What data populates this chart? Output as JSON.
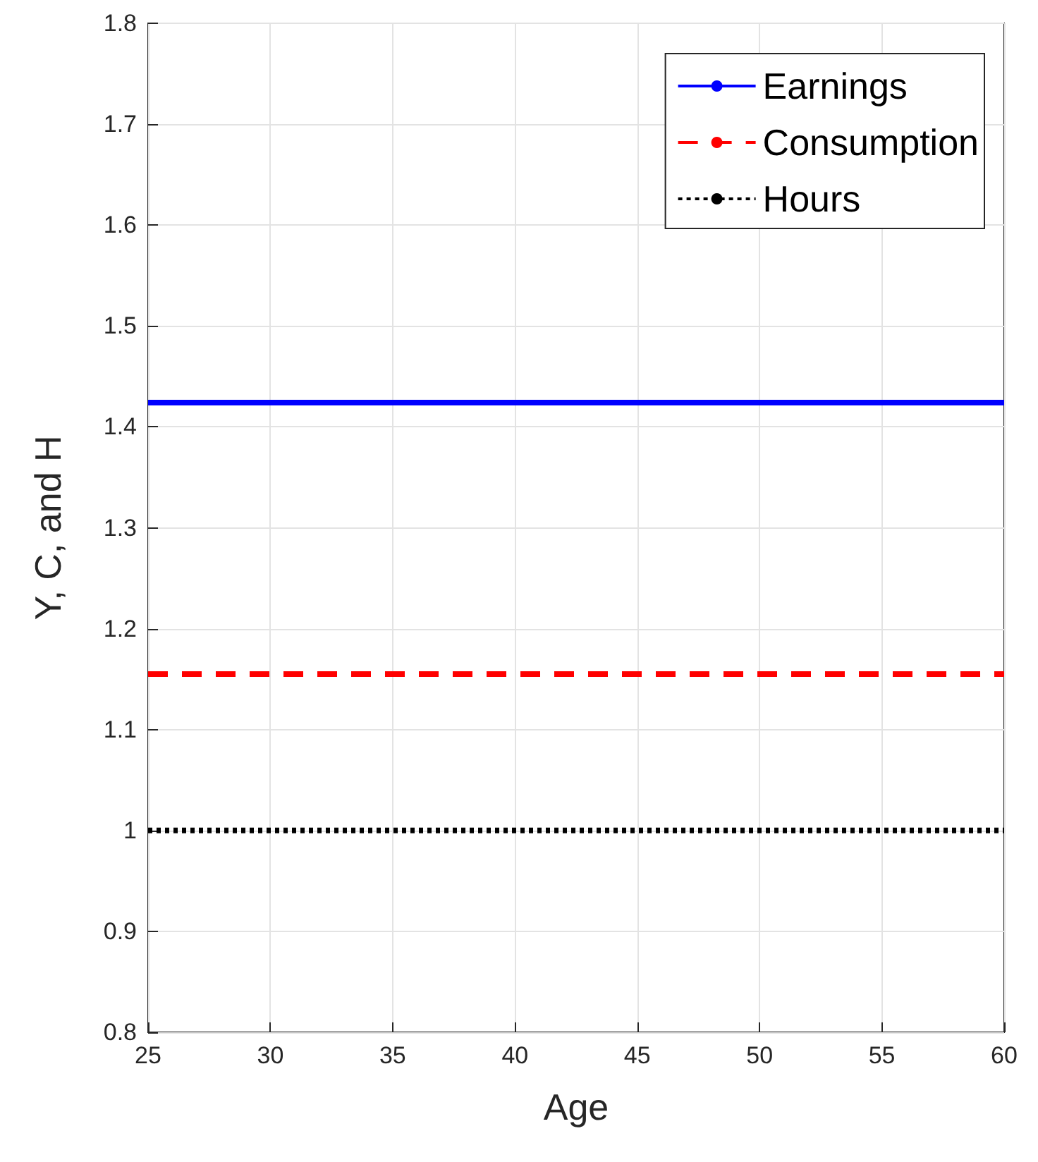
{
  "chart_data": {
    "type": "line",
    "xlabel": "Age",
    "ylabel": "Y, C, and H",
    "x": [
      25,
      60
    ],
    "xlim": [
      25,
      60
    ],
    "xticks": [
      25,
      30,
      35,
      40,
      45,
      50,
      55,
      60
    ],
    "ylim": [
      0.8,
      1.8
    ],
    "yticks": [
      0.8,
      0.9,
      1,
      1.1,
      1.2,
      1.3,
      1.4,
      1.5,
      1.6,
      1.7,
      1.8
    ],
    "grid": true,
    "legend": "top right",
    "marker": "none",
    "series": [
      {
        "name": "Earnings",
        "color": "#0000ff",
        "line_style": "solid",
        "values": [
          1.424,
          1.424
        ]
      },
      {
        "name": "Consumption",
        "color": "#ff0000",
        "line_style": "dashed",
        "values": [
          1.155,
          1.155
        ]
      },
      {
        "name": "Hours",
        "color": "#000000",
        "line_style": "dotted",
        "values": [
          1.0,
          1.0
        ]
      }
    ]
  }
}
